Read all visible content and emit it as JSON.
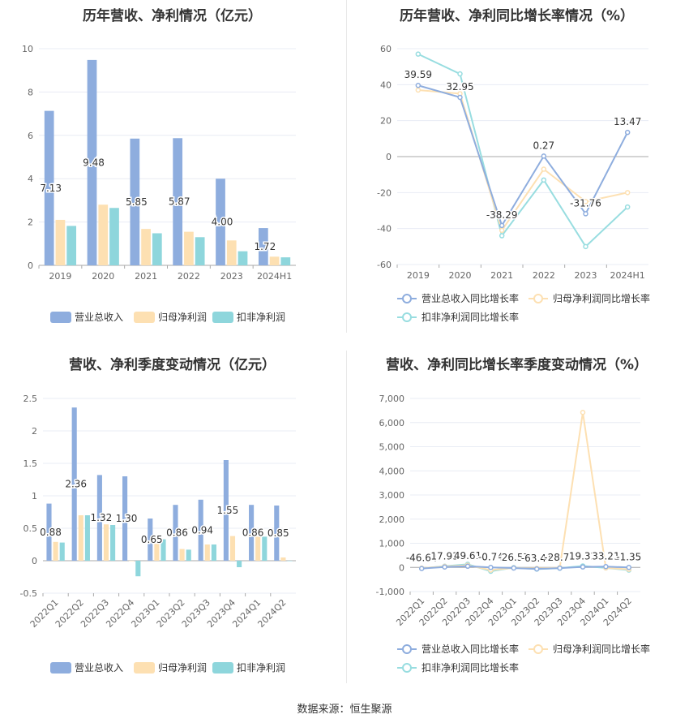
{
  "footer": {
    "source": "数据来源：恒生聚源"
  },
  "colors": {
    "revenue": "#8eadde",
    "netprofit": "#fde0b2",
    "deducted": "#8ed6dc",
    "revenue_line": "#8eadde",
    "netprofit_line": "#fde0b2",
    "deducted_line": "#98dde0",
    "grid": "#e8ecf4",
    "axis": "#999999"
  },
  "chart_data": [
    {
      "id": "annual",
      "type": "bar",
      "title": "历年营收、净利情况（亿元）",
      "categories": [
        "2019",
        "2020",
        "2021",
        "2022",
        "2023",
        "2024H1"
      ],
      "ylim": [
        0,
        10
      ],
      "yticks": [
        0,
        2,
        4,
        6,
        8,
        10
      ],
      "series": [
        {
          "name": "营业总收入",
          "values": [
            7.13,
            9.48,
            5.85,
            5.87,
            4.0,
            1.72
          ],
          "labels": [
            "7.13",
            "9.48",
            "5.85",
            "5.87",
            "4.00",
            "1.72"
          ]
        },
        {
          "name": "归母净利润",
          "values": [
            2.1,
            2.8,
            1.68,
            1.55,
            1.15,
            0.4
          ]
        },
        {
          "name": "扣非净利润",
          "values": [
            1.82,
            2.65,
            1.48,
            1.3,
            0.65,
            0.37
          ]
        }
      ],
      "legend": "bottom"
    },
    {
      "id": "annual_growth",
      "type": "line",
      "title": "历年营收、净利同比增长率情况（%）",
      "categories": [
        "2019",
        "2020",
        "2021",
        "2022",
        "2023",
        "2024H1"
      ],
      "ylim": [
        -60,
        60
      ],
      "yticks": [
        -60,
        -40,
        -20,
        0,
        20,
        40,
        60
      ],
      "series": [
        {
          "name": "营业总收入同比增长率",
          "values": [
            39.59,
            32.95,
            -38.29,
            0.27,
            -31.76,
            13.47
          ],
          "labels": [
            "39.59",
            "32.95",
            "-38.29",
            "0.27",
            "-31.76",
            "13.47"
          ]
        },
        {
          "name": "归母净利润同比增长率",
          "values": [
            37,
            35,
            -41,
            -7,
            -25,
            -20
          ]
        },
        {
          "name": "扣非净利润同比增长率",
          "values": [
            57,
            46,
            -44,
            -13,
            -50,
            -28
          ]
        }
      ],
      "legend": "bottom"
    },
    {
      "id": "quarterly",
      "type": "bar",
      "title": "营收、净利季度变动情况（亿元）",
      "categories": [
        "2022Q1",
        "2022Q2",
        "2022Q3",
        "2022Q4",
        "2023Q1",
        "2023Q2",
        "2023Q3",
        "2023Q4",
        "2024Q1",
        "2024Q2"
      ],
      "ylim": [
        -0.5,
        2.5
      ],
      "yticks": [
        -0.5,
        0,
        0.5,
        1,
        1.5,
        2,
        2.5
      ],
      "series": [
        {
          "name": "营业总收入",
          "values": [
            0.88,
            2.36,
            1.32,
            1.3,
            0.65,
            0.86,
            0.94,
            1.55,
            0.86,
            0.85
          ],
          "labels": [
            "0.88",
            "2.36",
            "1.32",
            "1.30",
            "0.65",
            "0.86",
            "0.94",
            "1.55",
            "0.86",
            "0.85"
          ]
        },
        {
          "name": "归母净利润",
          "values": [
            0.29,
            0.7,
            0.56,
            0.0,
            0.26,
            0.18,
            0.25,
            0.38,
            0.37,
            0.05
          ]
        },
        {
          "name": "扣非净利润",
          "values": [
            0.28,
            0.7,
            0.55,
            -0.24,
            0.33,
            0.17,
            0.25,
            -0.1,
            0.37,
            0.0
          ]
        }
      ],
      "legend": "bottom"
    },
    {
      "id": "quarterly_growth",
      "type": "line",
      "title": "营收、净利同比增长率季度变动情况（%）",
      "categories": [
        "2022Q1",
        "2022Q2",
        "2022Q3",
        "2022Q4",
        "2023Q1",
        "2023Q2",
        "2023Q3",
        "2023Q4",
        "2024Q1",
        "2024Q2"
      ],
      "ylim": [
        -1000,
        7000
      ],
      "yticks": [
        -1000,
        0,
        1000,
        2000,
        3000,
        4000,
        5000,
        6000,
        7000
      ],
      "ytick_labels": [
        "-1,000",
        "0",
        "1,000",
        "2,000",
        "3,000",
        "4,000",
        "5,000",
        "6,000",
        "7,000"
      ],
      "series": [
        {
          "name": "营业总收入同比增长率",
          "values": [
            -46.64,
            17.93,
            49.61,
            -0.74,
            -26.57,
            -63.41,
            -28.74,
            19.32,
            33.21,
            -1.35
          ],
          "labels": [
            "-46.64",
            "17.93",
            "49.61",
            "-0.74",
            "-26.57",
            "-63.41",
            "-28.74",
            "19.32",
            "33.21",
            "-1.35"
          ]
        },
        {
          "name": "归母净利润同比增长率",
          "values": [
            -30,
            40,
            90,
            -110,
            -20,
            -40,
            -10,
            6420,
            -20,
            -80
          ]
        },
        {
          "name": "扣非净利润同比增长率",
          "values": [
            -35,
            50,
            130,
            -160,
            -10,
            -70,
            -30,
            60,
            -20,
            -110
          ]
        }
      ],
      "legend": "bottom"
    }
  ]
}
